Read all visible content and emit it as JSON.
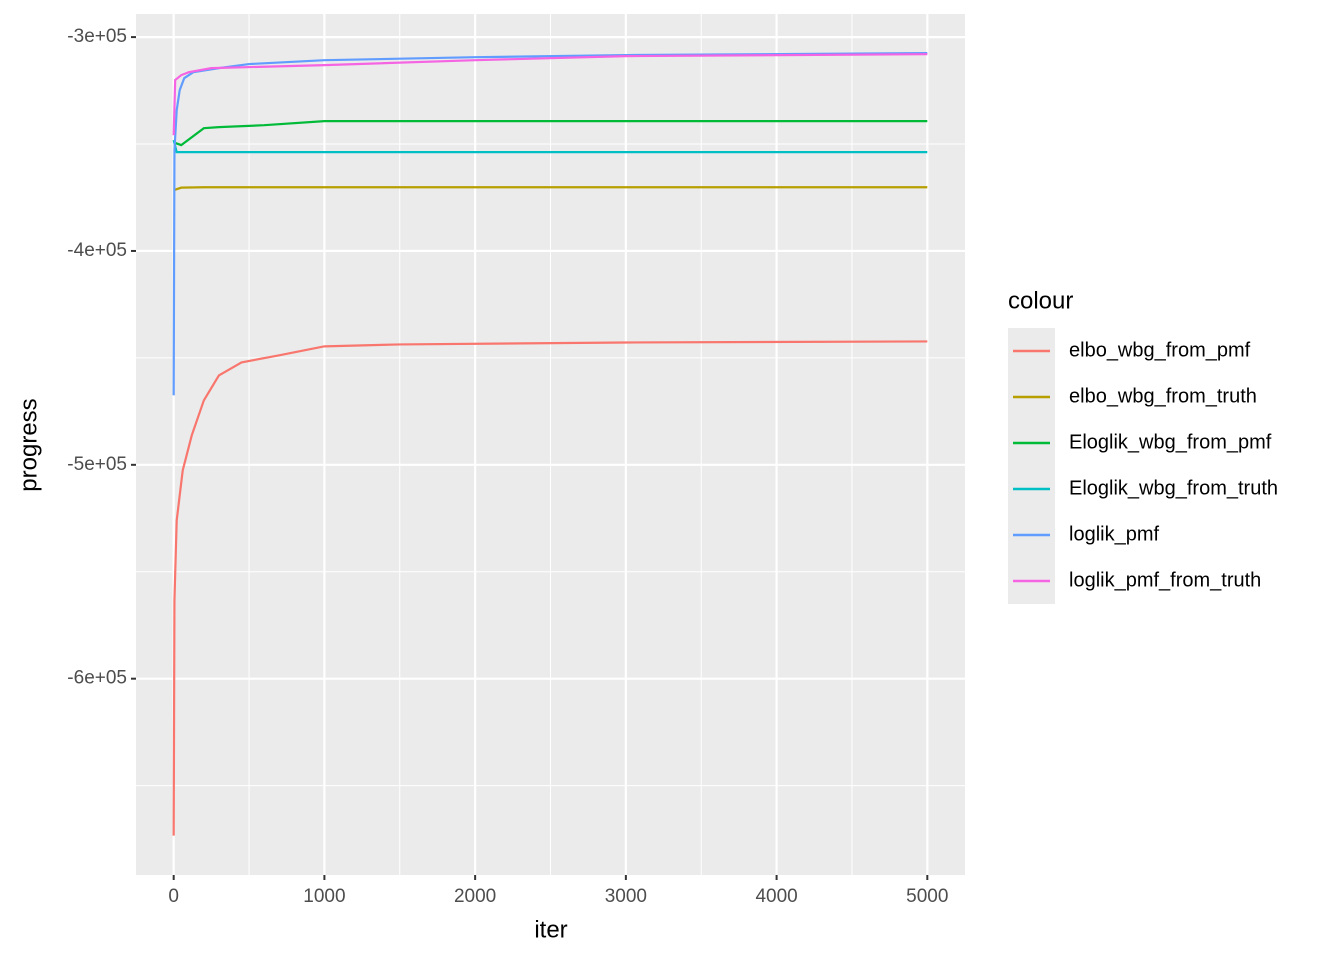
{
  "chart_data": {
    "type": "line",
    "xlabel": "iter",
    "ylabel": "progress",
    "xlim": [
      -250,
      5250
    ],
    "ylim": [
      -691800,
      -289200
    ],
    "xticks": [
      0,
      1000,
      2000,
      3000,
      4000,
      5000
    ],
    "xminor": [
      500,
      1500,
      2500,
      3500,
      4500
    ],
    "yticks": [
      {
        "value": -300000,
        "label": "-3e+05"
      },
      {
        "value": -400000,
        "label": "-4e+05"
      },
      {
        "value": -500000,
        "label": "-5e+05"
      },
      {
        "value": -600000,
        "label": "-6e+05"
      }
    ],
    "yminor": [
      -350000,
      -450000,
      -550000,
      -650000
    ],
    "grid": true,
    "legend_title": "colour",
    "legend": "right",
    "series": [
      {
        "name": "elbo_wbg_from_pmf",
        "color": "#F8766D",
        "x": [
          0,
          5,
          20,
          60,
          120,
          200,
          300,
          450,
          700,
          1000,
          1500,
          3000,
          5000
        ],
        "values": [
          -673400,
          -563500,
          -526000,
          -502600,
          -486200,
          -469900,
          -458200,
          -452100,
          -448800,
          -444600,
          -443700,
          -442800,
          -442300
        ]
      },
      {
        "name": "elbo_wbg_from_truth",
        "color": "#B79F00",
        "x": [
          0,
          50,
          200,
          5000
        ],
        "values": [
          -371600,
          -370400,
          -370200,
          -370200
        ]
      },
      {
        "name": "Eloglik_wbg_from_pmf",
        "color": "#00BA38",
        "x": [
          0,
          10,
          50,
          200,
          300,
          600,
          1000,
          5000
        ],
        "values": [
          -348200,
          -349500,
          -350500,
          -342600,
          -342100,
          -341200,
          -339300,
          -339300
        ]
      },
      {
        "name": "Eloglik_wbg_from_truth",
        "color": "#00BFC4",
        "x": [
          0,
          20,
          5000
        ],
        "values": [
          -348200,
          -353800,
          -353800
        ]
      },
      {
        "name": "loglik_pmf",
        "color": "#619CFF",
        "x": [
          0,
          5,
          20,
          40,
          70,
          130,
          300,
          500,
          1000,
          2000,
          3000,
          5000
        ],
        "values": [
          -467500,
          -352900,
          -334200,
          -324800,
          -319200,
          -316400,
          -314500,
          -312600,
          -310800,
          -309400,
          -308400,
          -307500
        ]
      },
      {
        "name": "loglik_pmf_from_truth",
        "color": "#F564E3",
        "x": [
          0,
          10,
          50,
          100,
          250,
          1000,
          2000,
          3000,
          5000
        ],
        "values": [
          -345900,
          -320100,
          -317800,
          -316400,
          -314500,
          -313100,
          -310800,
          -308900,
          -308000
        ]
      }
    ]
  }
}
